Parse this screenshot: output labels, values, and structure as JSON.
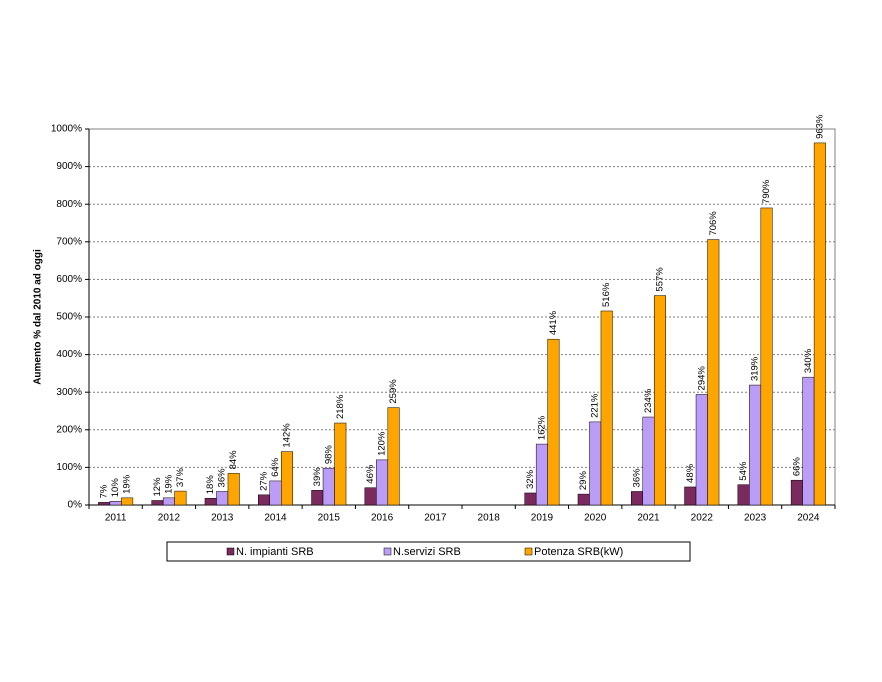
{
  "chart_data": {
    "type": "bar",
    "y_label": "Aumento % dal 2010 ad oggi",
    "categories": [
      "2011",
      "2012",
      "2013",
      "2014",
      "2015",
      "2016",
      "2017",
      "2018",
      "2019",
      "2020",
      "2021",
      "2022",
      "2023",
      "2024"
    ],
    "series": [
      {
        "name": "N. impianti SRB",
        "color": "#7b2a5e",
        "values": [
          7,
          12,
          18,
          27,
          39,
          46,
          null,
          null,
          32,
          29,
          36,
          48,
          54,
          66
        ],
        "value_labels": [
          "7%",
          "12%",
          "18%",
          "27%",
          "39%",
          "46%",
          null,
          null,
          "32%",
          "29%",
          "36%",
          "48%",
          "54%",
          "66%"
        ]
      },
      {
        "name": "N.servizi SRB",
        "color": "#bb9cf7",
        "values": [
          10,
          19,
          36,
          64,
          98,
          120,
          null,
          null,
          162,
          221,
          234,
          294,
          319,
          340
        ],
        "value_labels": [
          "10%",
          "19%",
          "36%",
          "64%",
          "98%",
          "120%",
          null,
          null,
          "162%",
          "221%",
          "234%",
          "294%",
          "319%",
          "340%"
        ]
      },
      {
        "name": "Potenza SRB(kW)",
        "color": "#ffa500",
        "values": [
          19,
          37,
          84,
          142,
          218,
          259,
          null,
          null,
          441,
          516,
          557,
          706,
          790,
          963
        ],
        "value_labels": [
          "19%",
          "37%",
          "84%",
          "142%",
          "218%",
          "259%",
          null,
          null,
          "441%",
          "516%",
          "557%",
          "706%",
          "790%",
          "963%"
        ]
      }
    ],
    "ylim": [
      0,
      1000
    ],
    "yticks": [
      {
        "value": 0,
        "label": "0%"
      },
      {
        "value": 100,
        "label": "100%"
      },
      {
        "value": 200,
        "label": "200%"
      },
      {
        "value": 300,
        "label": "300%"
      },
      {
        "value": 400,
        "label": "400%"
      },
      {
        "value": 500,
        "label": "500%"
      },
      {
        "value": 600,
        "label": "600%"
      },
      {
        "value": 700,
        "label": "700%"
      },
      {
        "value": 800,
        "label": "800%"
      },
      {
        "value": 900,
        "label": "900%"
      },
      {
        "value": 1000,
        "label": "1000%"
      }
    ],
    "grid": true
  }
}
